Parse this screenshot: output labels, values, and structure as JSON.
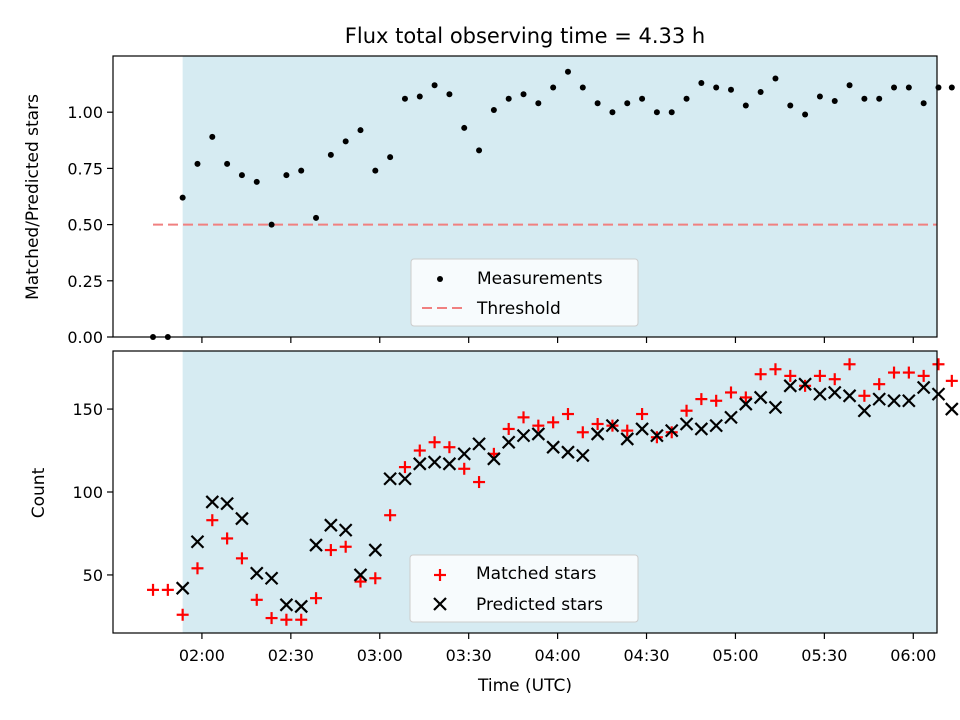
{
  "chart_data": {
    "type": "scatter",
    "title": "Flux total observing time = 4.33 h",
    "xlabel": "Time (UTC)",
    "x_tick_labels": [
      "02:00",
      "02:30",
      "03:00",
      "03:30",
      "04:00",
      "04:30",
      "05:00",
      "05:30",
      "06:00"
    ],
    "x_tick_minutes": [
      120,
      150,
      180,
      210,
      240,
      270,
      300,
      330,
      360
    ],
    "xlim_minutes": [
      90,
      368
    ],
    "shaded_interval_minutes": [
      113.5,
      373
    ],
    "shade_color": "#add8e6",
    "panels": [
      {
        "ylabel": "Matched/Predicted stars",
        "ylim": [
          0,
          1.25
        ],
        "y_ticks": [
          0.0,
          0.25,
          0.5,
          0.75,
          1.0
        ],
        "y_tick_labels": [
          "0.00",
          "0.25",
          "0.50",
          "0.75",
          "1.00"
        ],
        "threshold": 0.5,
        "legend": {
          "placement": "lower center",
          "entries": [
            "Measurements",
            "Threshold"
          ]
        },
        "series": [
          {
            "name": "Measurements",
            "color": "#000000",
            "marker": "dot",
            "x": [
              103.5,
              108.5,
              113.5,
              118.5,
              123.5,
              128.5,
              133.5,
              138.5,
              143.5,
              148.5,
              153.5,
              158.5,
              163.5,
              168.5,
              173.5,
              178.5,
              183.5,
              188.5,
              193.5,
              198.5,
              203.5,
              208.5,
              213.5,
              218.5,
              223.5,
              228.5,
              233.5,
              238.5,
              243.5,
              248.5,
              253.5,
              258.5,
              263.5,
              268.5,
              273.5,
              278.5,
              283.5,
              288.5,
              293.5,
              298.5,
              303.5,
              308.5,
              313.5,
              318.5,
              323.5,
              328.5,
              333.5,
              338.5,
              343.5,
              348.5,
              353.5,
              358.5,
              363.5,
              368.5,
              373
            ],
            "y": [
              0,
              0,
              0.62,
              0.77,
              0.89,
              0.77,
              0.72,
              0.69,
              0.5,
              0.72,
              0.74,
              0.53,
              0.81,
              0.87,
              0.92,
              0.74,
              0.8,
              1.06,
              1.07,
              1.12,
              1.08,
              0.93,
              0.83,
              1.01,
              1.06,
              1.08,
              1.04,
              1.11,
              1.18,
              1.11,
              1.04,
              1.0,
              1.04,
              1.06,
              1.0,
              1.0,
              1.06,
              1.13,
              1.11,
              1.1,
              1.03,
              1.09,
              1.15,
              1.03,
              0.99,
              1.07,
              1.05,
              1.12,
              1.06,
              1.06,
              1.11,
              1.11,
              1.04,
              1.11,
              1.11
            ]
          },
          {
            "name": "Threshold",
            "color": "#f08080",
            "style": "dashed",
            "x": [
              103.5,
              373
            ],
            "y": [
              0.5,
              0.5
            ]
          }
        ]
      },
      {
        "ylabel": "Count",
        "ylim": [
          15,
          185
        ],
        "y_ticks": [
          50,
          100,
          150
        ],
        "y_tick_labels": [
          "50",
          "100",
          "150"
        ],
        "legend": {
          "placement": "lower center",
          "entries": [
            "Matched stars",
            "Predicted stars"
          ]
        },
        "series": [
          {
            "name": "Matched stars",
            "color": "#ff0000",
            "marker": "plus",
            "x": [
              103.5,
              108.5,
              113.5,
              118.5,
              123.5,
              128.5,
              133.5,
              138.5,
              143.5,
              148.5,
              153.5,
              158.5,
              163.5,
              168.5,
              173.5,
              178.5,
              183.5,
              188.5,
              193.5,
              198.5,
              203.5,
              208.5,
              213.5,
              218.5,
              223.5,
              228.5,
              233.5,
              238.5,
              243.5,
              248.5,
              253.5,
              258.5,
              263.5,
              268.5,
              273.5,
              278.5,
              283.5,
              288.5,
              293.5,
              298.5,
              303.5,
              308.5,
              313.5,
              318.5,
              323.5,
              328.5,
              333.5,
              338.5,
              343.5,
              348.5,
              353.5,
              358.5,
              363.5,
              368.5,
              373
            ],
            "y": [
              41,
              41,
              26,
              54,
              83,
              72,
              60,
              35,
              24,
              23,
              23,
              36,
              65,
              67,
              46,
              48,
              86,
              115,
              125,
              130,
              127,
              114,
              106,
              123,
              138,
              145,
              140,
              142,
              147,
              136,
              141,
              140,
              137,
              147,
              133,
              136,
              149,
              156,
              155,
              160,
              157,
              171,
              174,
              170,
              164,
              170,
              168,
              177,
              158,
              165,
              172,
              172,
              170,
              177,
              167
            ]
          },
          {
            "name": "Predicted stars",
            "color": "#000000",
            "marker": "x",
            "x": [
              113.5,
              118.5,
              123.5,
              128.5,
              133.5,
              138.5,
              143.5,
              148.5,
              153.5,
              158.5,
              163.5,
              168.5,
              173.5,
              178.5,
              183.5,
              188.5,
              193.5,
              198.5,
              203.5,
              208.5,
              213.5,
              218.5,
              223.5,
              228.5,
              233.5,
              238.5,
              243.5,
              248.5,
              253.5,
              258.5,
              263.5,
              268.5,
              273.5,
              278.5,
              283.5,
              288.5,
              293.5,
              298.5,
              303.5,
              308.5,
              313.5,
              318.5,
              323.5,
              328.5,
              333.5,
              338.5,
              343.5,
              348.5,
              353.5,
              358.5,
              363.5,
              368.5,
              373
            ],
            "y": [
              42,
              70,
              94,
              93,
              84,
              51,
              48,
              32,
              31,
              68,
              80,
              77,
              50,
              65,
              108,
              108,
              117,
              118,
              117,
              123,
              129,
              120,
              130,
              134,
              135,
              127,
              124,
              122,
              135,
              140,
              132,
              138,
              134,
              137,
              141,
              138,
              140,
              145,
              153,
              157,
              151,
              164,
              165,
              159,
              160,
              158,
              149,
              156,
              155,
              155,
              163,
              159,
              150
            ]
          }
        ]
      }
    ]
  }
}
